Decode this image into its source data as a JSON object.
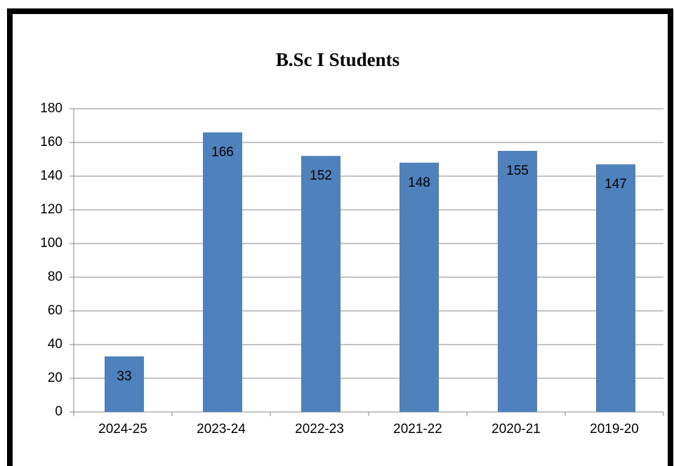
{
  "chart_data": {
    "type": "bar",
    "title": "B.Sc I Students",
    "categories": [
      "2024-25",
      "2023-24",
      "2022-23",
      "2021-22",
      "2020-21",
      "2019-20"
    ],
    "values": [
      33,
      166,
      152,
      148,
      155,
      147
    ],
    "color": "#4f81bd",
    "ylim": [
      0,
      180
    ],
    "yticks": [
      0,
      20,
      40,
      60,
      80,
      100,
      120,
      140,
      160,
      180
    ],
    "grid": true
  }
}
